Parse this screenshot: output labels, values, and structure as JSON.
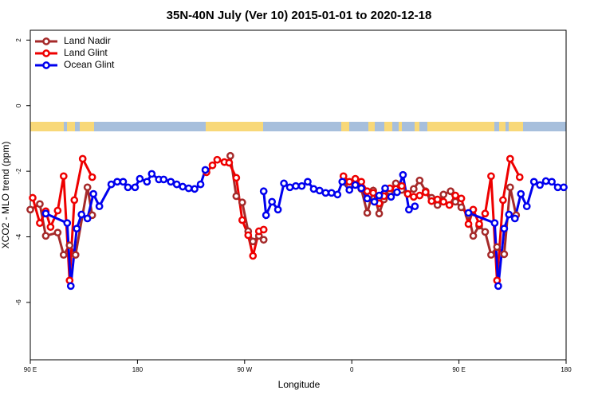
{
  "chart_data": {
    "type": "line",
    "title": "35N-40N July (Ver 10)   2015-01-01 to 2020-12-18",
    "xlabel": "Longitude",
    "ylabel": "XCO2 - MLO trend (ppm)",
    "xlim": [
      90,
      540
    ],
    "ylim": [
      -7.75,
      2.3
    ],
    "xticks": [
      {
        "value": 90,
        "label": "90 E"
      },
      {
        "value": 180,
        "label": "180"
      },
      {
        "value": 270,
        "label": "90 W"
      },
      {
        "value": 360,
        "label": "0"
      },
      {
        "value": 450,
        "label": "90 E"
      },
      {
        "value": 540,
        "label": "180"
      }
    ],
    "yticks": [
      2,
      0,
      -2,
      -4,
      -6
    ],
    "grid": false,
    "legend": "upper left",
    "series": [
      {
        "name": "Land Nadir",
        "color": "#a52a2a",
        "x": [
          90,
          98,
          103,
          113,
          118,
          123,
          128,
          138,
          142,
          null,
          258,
          263,
          268,
          273,
          277,
          282,
          286,
          null,
          353,
          358,
          363,
          368,
          373,
          378,
          383,
          387,
          392,
          397,
          402,
          407,
          412,
          417,
          422,
          427,
          432,
          437,
          443,
          447,
          452,
          458,
          462,
          467,
          472,
          477,
          482,
          488,
          493,
          498
        ],
        "values": [
          -3.17,
          -3.0,
          -3.97,
          -3.87,
          -4.55,
          -4.26,
          -4.55,
          -2.49,
          -3.34,
          null,
          -1.53,
          -2.76,
          -2.95,
          -3.83,
          -4.14,
          -3.97,
          -4.09,
          null,
          -2.32,
          -2.42,
          -2.25,
          -2.54,
          -3.27,
          -2.59,
          -3.29,
          -2.86,
          -2.61,
          -2.37,
          -2.57,
          -2.69,
          -2.54,
          -2.28,
          -2.61,
          -2.81,
          -3.03,
          -2.71,
          -2.61,
          -2.93,
          -3.1,
          -3.34,
          -3.97,
          -3.66,
          -3.85,
          -4.55,
          -4.31,
          -4.53,
          -2.49,
          -3.34
        ]
      },
      {
        "name": "Land Glint",
        "color": "#ee0000",
        "x": [
          92,
          98,
          103,
          107,
          113,
          118,
          123,
          127,
          134,
          142,
          null,
          238,
          243,
          247,
          253,
          257,
          263,
          268,
          273,
          277,
          282,
          286,
          null,
          353,
          358,
          363,
          368,
          373,
          378,
          383,
          387,
          392,
          397,
          402,
          407,
          412,
          417,
          422,
          427,
          432,
          437,
          442,
          447,
          452,
          458,
          462,
          467,
          472,
          477,
          482,
          487,
          493,
          501
        ],
        "values": [
          -2.81,
          -3.58,
          -3.22,
          -3.7,
          -3.2,
          -2.15,
          -5.33,
          -2.88,
          -1.62,
          -2.18,
          null,
          -2.03,
          -1.82,
          -1.65,
          -1.72,
          -1.74,
          -2.2,
          -3.49,
          -3.95,
          -4.58,
          -3.83,
          -3.78,
          null,
          -2.15,
          -2.32,
          -2.23,
          -2.32,
          -2.61,
          -2.66,
          -2.98,
          -2.76,
          -2.52,
          -2.54,
          -2.45,
          -2.69,
          -2.78,
          -2.74,
          -2.64,
          -2.91,
          -2.86,
          -2.93,
          -3.03,
          -2.74,
          -2.83,
          -3.61,
          -3.17,
          -3.61,
          -3.29,
          -2.15,
          -5.33,
          -2.88,
          -1.62,
          -2.18
        ]
      },
      {
        "name": "Ocean Glint",
        "color": "#0000ee",
        "x": [
          103,
          121,
          124,
          129,
          133,
          138,
          143,
          148,
          158,
          163,
          168,
          172,
          178,
          182,
          188,
          192,
          198,
          202,
          208,
          213,
          218,
          223,
          228,
          233,
          237,
          null,
          286,
          288,
          293,
          298,
          303,
          308,
          313,
          318,
          323,
          328,
          333,
          338,
          343,
          348,
          352,
          358,
          363,
          368,
          373,
          379,
          383,
          388,
          393,
          398,
          403,
          408,
          413,
          null,
          458,
          480,
          483,
          488,
          492,
          497,
          502,
          507,
          513,
          518,
          523,
          528,
          533,
          538
        ],
        "values": [
          -3.29,
          -3.58,
          -5.5,
          -3.75,
          -3.32,
          -3.44,
          -2.69,
          -3.07,
          -2.4,
          -2.32,
          -2.32,
          -2.49,
          -2.49,
          -2.23,
          -2.32,
          -2.08,
          -2.25,
          -2.25,
          -2.32,
          -2.4,
          -2.47,
          -2.52,
          -2.54,
          -2.4,
          -1.96,
          null,
          -2.61,
          -3.34,
          -2.93,
          -3.17,
          -2.37,
          -2.49,
          -2.45,
          -2.45,
          -2.32,
          -2.54,
          -2.59,
          -2.66,
          -2.66,
          -2.71,
          -2.32,
          -2.57,
          -2.42,
          -2.52,
          -2.83,
          -2.93,
          -2.74,
          -2.52,
          -2.78,
          -2.64,
          -2.11,
          -3.17,
          -3.07,
          null,
          -3.27,
          -3.58,
          -5.5,
          -3.75,
          -3.32,
          -3.44,
          -2.69,
          -3.07,
          -2.32,
          -2.42,
          -2.3,
          -2.32,
          -2.49,
          -2.49
        ]
      }
    ]
  }
}
